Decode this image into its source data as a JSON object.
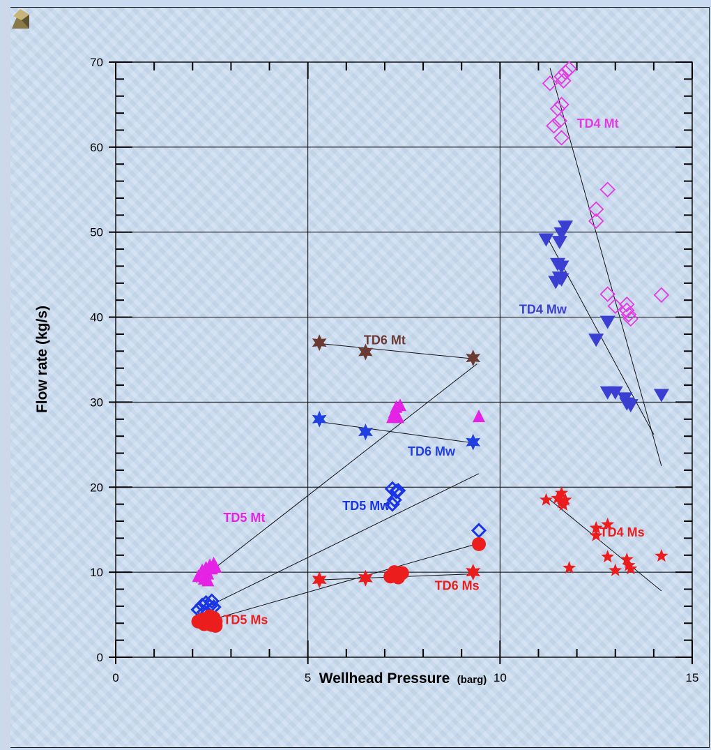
{
  "chart_data": {
    "type": "scatter",
    "xlabel": "Wellhead Pressure",
    "xlabel_unit": "(barg)",
    "ylabel": "Flow rate (kg/s)",
    "xlim": [
      0,
      15
    ],
    "ylim": [
      0,
      70
    ],
    "x_ticks": [
      "0",
      "5",
      "10",
      "15"
    ],
    "y_ticks": [
      "0",
      "10",
      "20",
      "30",
      "40",
      "50",
      "60",
      "70"
    ],
    "grid": true,
    "series": [
      {
        "label": "TD4 Mt",
        "color": "#e23be2",
        "marker": "diamond-open",
        "points": [
          [
            11.3,
            67.5
          ],
          [
            11.6,
            68.3
          ],
          [
            11.65,
            67.8
          ],
          [
            11.7,
            68.8
          ],
          [
            11.8,
            69.2
          ],
          [
            11.5,
            64.5
          ],
          [
            11.6,
            65
          ],
          [
            11.4,
            62.5
          ],
          [
            11.55,
            63.1
          ],
          [
            11.6,
            61.1
          ],
          [
            12.8,
            55
          ],
          [
            12.5,
            52.7
          ],
          [
            12.5,
            51.3
          ],
          [
            12.8,
            42.7
          ],
          [
            13,
            41.3
          ],
          [
            13.3,
            41.5
          ],
          [
            13.3,
            40.8
          ],
          [
            13.35,
            40.3
          ],
          [
            13.4,
            39.8
          ],
          [
            14.2,
            42.6
          ]
        ],
        "trend": [
          [
            11.3,
            69.3
          ],
          [
            14.2,
            22.5
          ]
        ],
        "label_pos": "upper-right"
      },
      {
        "label": "TD4 Mw",
        "color": "#3a3fd2",
        "marker": "triangle-down",
        "points": [
          [
            11.2,
            49.2
          ],
          [
            11.6,
            49.9
          ],
          [
            11.7,
            50.7
          ],
          [
            11.55,
            48.9
          ],
          [
            11.5,
            46.3
          ],
          [
            11.6,
            46
          ],
          [
            11.45,
            44.2
          ],
          [
            11.55,
            44.7
          ],
          [
            11.6,
            44.5
          ],
          [
            12.5,
            37.4
          ],
          [
            12.8,
            39.5
          ],
          [
            12.8,
            31.2
          ],
          [
            13.0,
            31.2
          ],
          [
            13.25,
            30.5
          ],
          [
            13.3,
            29.9
          ],
          [
            13.4,
            29.7
          ],
          [
            14.2,
            30.9
          ]
        ],
        "trend": [
          [
            11.25,
            49.2
          ],
          [
            14.0,
            26.2
          ]
        ],
        "label_pos": "left"
      },
      {
        "label": "TD4 Ms",
        "color": "#ea1c1c",
        "marker": "star5",
        "points": [
          [
            11.2,
            18.5
          ],
          [
            11.5,
            18.7
          ],
          [
            11.6,
            19.3
          ],
          [
            11.6,
            18.2
          ],
          [
            11.65,
            17.9
          ],
          [
            11.7,
            18.5
          ],
          [
            11.8,
            10.5
          ],
          [
            12.5,
            15.2
          ],
          [
            12.5,
            14.3
          ],
          [
            12.8,
            15.6
          ],
          [
            12.8,
            11.8
          ],
          [
            13.0,
            10.2
          ],
          [
            13.3,
            11.5
          ],
          [
            13.35,
            10.8
          ],
          [
            13.4,
            10.4
          ],
          [
            14.2,
            11.9
          ]
        ],
        "trend": [
          [
            11.25,
            18.7
          ],
          [
            14.2,
            7.8
          ]
        ],
        "label_pos": "right"
      },
      {
        "label": "TD6 Mt",
        "color": "#6b3a33",
        "marker": "star6",
        "points": [
          [
            5.3,
            37
          ],
          [
            6.5,
            35.9
          ],
          [
            9.3,
            35.2
          ]
        ],
        "trend": [
          [
            5.3,
            36.9
          ],
          [
            9.3,
            35.1
          ]
        ],
        "label_pos": "above"
      },
      {
        "label": "TD6 Mw",
        "color": "#1f3fe0",
        "marker": "star6",
        "points": [
          [
            5.3,
            28
          ],
          [
            6.5,
            26.5
          ],
          [
            9.3,
            25.3
          ]
        ],
        "trend": [
          [
            5.3,
            27.7
          ],
          [
            9.3,
            25.2
          ]
        ],
        "label_pos": "below"
      },
      {
        "label": "TD6 Ms",
        "color": "#ea1c1c",
        "marker": "star6",
        "points": [
          [
            5.3,
            9.1
          ],
          [
            6.5,
            9.3
          ],
          [
            9.3,
            10
          ]
        ],
        "trend": [
          [
            5.3,
            9.1
          ],
          [
            9.3,
            9.8
          ]
        ],
        "label_pos": "below"
      },
      {
        "label": "TD5 Mt",
        "color": "#e423e4",
        "marker": "triangle-up",
        "points": [
          [
            2.15,
            9.5
          ],
          [
            2.25,
            10.2
          ],
          [
            2.3,
            9.2
          ],
          [
            2.35,
            10.5
          ],
          [
            2.4,
            9.8
          ],
          [
            2.45,
            10.8
          ],
          [
            2.5,
            10.4
          ],
          [
            2.55,
            11
          ],
          [
            2.6,
            10.6
          ],
          [
            2.4,
            9.0
          ],
          [
            7.2,
            28.2
          ],
          [
            7.25,
            28.8
          ],
          [
            7.3,
            29.4
          ],
          [
            7.35,
            28.2
          ],
          [
            7.4,
            29.6
          ],
          [
            9.45,
            28.3
          ]
        ],
        "trend": [
          [
            2.1,
            8.8
          ],
          [
            9.4,
            34.5
          ]
        ],
        "label_pos": "left"
      },
      {
        "label": "TD5 Mw",
        "color": "#1a35e6",
        "marker": "diamond-bold",
        "points": [
          [
            2.15,
            5.6
          ],
          [
            2.25,
            6.1
          ],
          [
            2.35,
            6.4
          ],
          [
            2.45,
            6.0
          ],
          [
            2.5,
            6.6
          ],
          [
            2.55,
            5.9
          ],
          [
            2.3,
            5.3
          ],
          [
            7.2,
            19.8
          ],
          [
            7.3,
            19.5
          ],
          [
            7.25,
            18.5
          ],
          [
            7.2,
            18.0
          ],
          [
            7.35,
            19.6
          ],
          [
            9.45,
            14.9
          ]
        ],
        "trend": [
          [
            2.1,
            5.3
          ],
          [
            9.45,
            21.6
          ]
        ],
        "label_pos": "below"
      },
      {
        "label": "TD5 Ms",
        "color": "#ec1d1d",
        "marker": "circle",
        "points": [
          [
            2.15,
            4.2
          ],
          [
            2.25,
            4.4
          ],
          [
            2.3,
            3.9
          ],
          [
            2.35,
            4.5
          ],
          [
            2.4,
            4.1
          ],
          [
            2.45,
            4.8
          ],
          [
            2.5,
            3.8
          ],
          [
            2.55,
            4.6
          ],
          [
            2.6,
            4.2
          ],
          [
            2.45,
            3.9
          ],
          [
            2.6,
            3.7
          ],
          [
            7.15,
            9.5
          ],
          [
            7.25,
            10
          ],
          [
            7.3,
            9.7
          ],
          [
            7.35,
            9.4
          ],
          [
            7.45,
            9.9
          ],
          [
            9.45,
            13.3
          ]
        ],
        "trend": [
          [
            2.1,
            3.9
          ],
          [
            9.45,
            13.4
          ]
        ],
        "label_pos": "right"
      }
    ]
  }
}
